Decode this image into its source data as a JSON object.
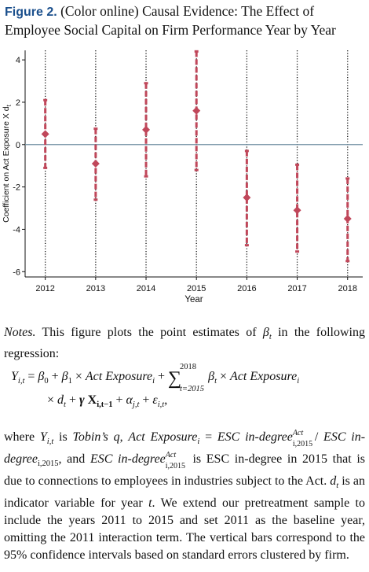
{
  "figure": {
    "label": "Figure 2.",
    "caption_line1": "(Color online) Causal Evidence: The Effect of",
    "caption_line2": "Employee Social Capital on Firm Performance Year by Year"
  },
  "chart_data": {
    "type": "scatter",
    "title": "",
    "xlabel": "Year",
    "ylabel": "Coefficient on Act Exposure X d",
    "ylabel_subscript": "t",
    "x": [
      2012,
      2013,
      2014,
      2015,
      2016,
      2017,
      2018
    ],
    "x_tick_labels": [
      "2012",
      "2013",
      "2014",
      "2015",
      "2016",
      "2017",
      "2018"
    ],
    "y_ticks": [
      4,
      2,
      0,
      -2,
      -4,
      -6
    ],
    "y_tick_labels": [
      "4",
      "2",
      "0",
      "-2",
      "-4",
      "-6"
    ],
    "xlim": [
      2011.6,
      2018.3
    ],
    "ylim": [
      -6.25,
      4.45
    ],
    "reference_line_y": 0,
    "point_estimates": [
      0.5,
      -0.9,
      0.7,
      1.6,
      -2.5,
      -3.1,
      -3.5
    ],
    "ci_lower": [
      -1.1,
      -2.6,
      -1.5,
      -1.2,
      -4.75,
      -5.05,
      -5.5
    ],
    "ci_upper": [
      2.1,
      0.75,
      2.9,
      4.4,
      -0.3,
      -0.95,
      -1.6
    ],
    "colors": {
      "estimate": "#c0475a",
      "reference_line": "#6f8ea0",
      "axis": "#111111"
    }
  },
  "notes": {
    "label": "Notes.",
    "text_before_beta": "This figure plots the point estimates of ",
    "beta": "β",
    "beta_sub": "t",
    "text_after_beta": " in the following regression:"
  },
  "equation": {
    "lhs": "Y",
    "lhs_sub": "i,t",
    "beta0": "β",
    "beta0_sub": "0",
    "beta1": "β",
    "beta1_sub": "1",
    "var": "Act Exposure",
    "var_sub": "i",
    "sum_symbol": "∑",
    "sum_upper": "2018",
    "sum_lower": "t=2015",
    "betat": "β",
    "betat_sub": "t",
    "dt": "d",
    "dt_sub": "t",
    "gamma": "γ",
    "X": "X",
    "X_sub": "i,t−1",
    "alpha": "α",
    "alpha_sub": "j,t",
    "eps": "ε",
    "eps_sub": "i,t",
    "tail": ","
  },
  "body": {
    "where": "where",
    "Y": "Y",
    "Y_sub": "i,t",
    "is": "is",
    "tobin": "Tobin’s",
    "q": "q",
    "act": "Act Exposure",
    "act_sub": "i",
    "equals": "=",
    "esc_indegree": "ESC in-degree",
    "act_sup": "Act",
    "sub_i2015": "i,2015",
    "and": "and",
    "text_after": "is ESC in-degree in 2015 that is due to connections to employees in industries subject to the Act.",
    "dt": "d",
    "dt_sub": "t",
    "dt_text": "is an indicator variable for year",
    "t": "t",
    "rest": ". We extend our pretreatment sample to include the years 2011 to 2015 and set 2011 as the baseline year, omitting the 2011 interaction term. The vertical bars correspond to the 95% confidence intervals based on standard errors clustered by firm."
  }
}
